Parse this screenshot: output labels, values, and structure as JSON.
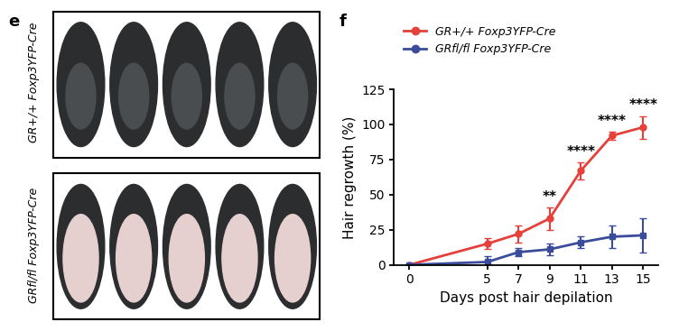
{
  "panel_e": {
    "label": "e",
    "row_labels": [
      "GR+/+ Foxp3YFP-Cre",
      "GRfl/fl Foxp3YFP-Cre"
    ]
  },
  "chart_data": {
    "type": "line",
    "panel_label": "f",
    "x_label": "Days post hair depilation",
    "y_label": "Hair regrowth (%)",
    "x": [
      0,
      5,
      7,
      9,
      11,
      13,
      15
    ],
    "xlim": [
      -1,
      16
    ],
    "xticks": [
      0,
      5,
      7,
      9,
      11,
      13,
      15
    ],
    "ylim": [
      0,
      125
    ],
    "yticks": [
      0,
      25,
      50,
      75,
      100,
      125
    ],
    "legend": "upper left",
    "grid": false,
    "series": [
      {
        "name": "GR+/+ Foxp3YFP-Cre",
        "color": "#e5403a",
        "marker": "o",
        "line_style": "solid",
        "values": [
          0,
          15,
          22,
          33,
          67,
          92,
          98
        ],
        "error": [
          0,
          4,
          6,
          8,
          6,
          3,
          8
        ]
      },
      {
        "name": "GRfl/fl Foxp3YFP-Cre",
        "color": "#3a4c9a",
        "marker": "s",
        "line_style": "solid",
        "values": [
          0,
          2,
          9,
          11,
          16,
          20,
          21
        ],
        "error": [
          0,
          4,
          3,
          4,
          4,
          8,
          12
        ]
      }
    ],
    "annotations": [
      {
        "x": 9,
        "text": "**"
      },
      {
        "x": 11,
        "text": "****"
      },
      {
        "x": 13,
        "text": "****"
      },
      {
        "x": 15,
        "text": "****"
      }
    ]
  }
}
